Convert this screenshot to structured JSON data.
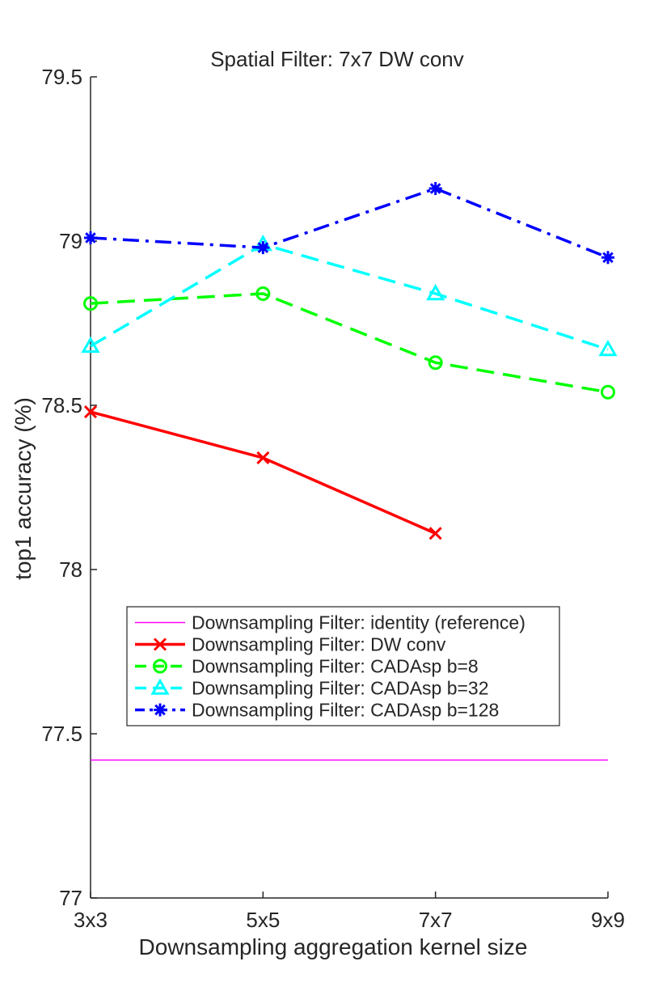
{
  "chart_data": {
    "type": "line",
    "title": "Spatial Filter: 7x7 DW conv",
    "xlabel": "Downsampling aggregation kernel size",
    "ylabel": "top1 accuracy (%)",
    "categories": [
      "3x3",
      "5x5",
      "7x7",
      "9x9"
    ],
    "ylim": [
      77,
      79.5
    ],
    "yticks": [
      77,
      77.5,
      78,
      78.5,
      79,
      79.5
    ],
    "ytick_labels": [
      "77",
      "77.5",
      "78",
      "78.5",
      "79",
      "79.5"
    ],
    "grid": false,
    "legend_position": "center-left",
    "series": [
      {
        "name": "Downsampling Filter: identity (reference)",
        "color": "#ff00ff",
        "style": "solid",
        "marker": "none",
        "values": [
          77.42,
          77.42,
          77.42,
          77.42
        ]
      },
      {
        "name": "Downsampling Filter: DW conv",
        "color": "#ff0000",
        "style": "solid",
        "marker": "x",
        "values": [
          78.48,
          78.34,
          78.11,
          null
        ]
      },
      {
        "name": "Downsampling Filter: CADAsp b=8",
        "color": "#00ff00",
        "style": "dashed",
        "marker": "circle",
        "values": [
          78.81,
          78.84,
          78.63,
          78.54
        ]
      },
      {
        "name": "Downsampling Filter: CADAsp b=32",
        "color": "#00ffff",
        "style": "dashed",
        "marker": "triangle",
        "values": [
          78.68,
          78.99,
          78.84,
          78.67
        ]
      },
      {
        "name": "Downsampling Filter: CADAsp b=128",
        "color": "#0000ff",
        "style": "dashdot",
        "marker": "asterisk",
        "values": [
          79.01,
          78.98,
          79.16,
          78.95
        ]
      }
    ]
  }
}
